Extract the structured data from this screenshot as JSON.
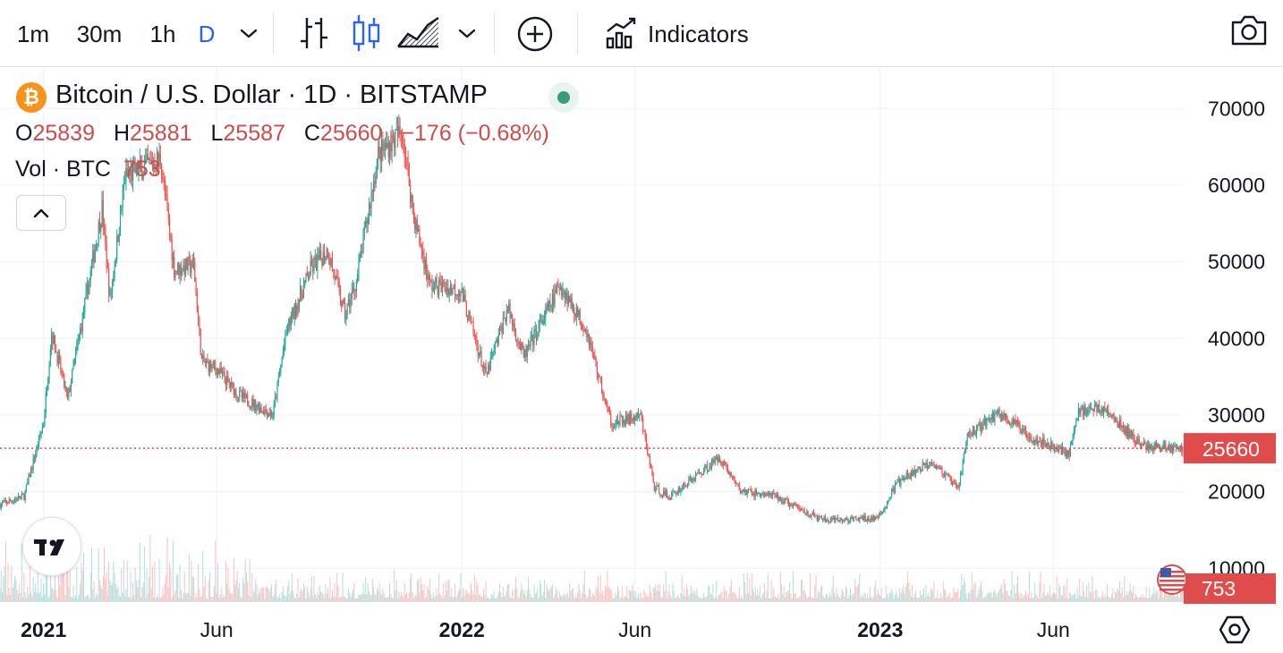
{
  "toolbar": {
    "intervals": [
      "1m",
      "30m",
      "1h",
      "D"
    ],
    "active_interval": "D",
    "indicators_label": "Indicators"
  },
  "legend": {
    "title": "Bitcoin / U.S. Dollar · 1D · BITSTAMP",
    "coin_symbol": "₿",
    "open_key": "O",
    "open": "25839",
    "high_key": "H",
    "high": "25881",
    "low_key": "L",
    "low": "25587",
    "close_key": "C",
    "close": "25660",
    "change": "−176 (−0.68%)",
    "volume_label": "Vol · BTC",
    "volume": "753"
  },
  "colors": {
    "up": "#26a69a",
    "down": "#ef5350",
    "last_price": "#e04b4b",
    "grid": "#f0f3fa",
    "interval_active": "#2962ff"
  },
  "chart_data": {
    "type": "candlestick",
    "title": "Bitcoin / U.S. Dollar · 1D · BITSTAMP",
    "y_ticks": [
      10000,
      20000,
      30000,
      40000,
      50000,
      60000,
      70000
    ],
    "y_tick_labels": [
      "10000",
      "20000",
      "30000",
      "40000",
      "50000",
      "60000",
      "70000"
    ],
    "ylim": [
      5600,
      75400
    ],
    "x_ticks": [
      "2021",
      "Jun",
      "2022",
      "Jun",
      "2023",
      "Jun"
    ],
    "x_tick_dates": [
      "2021-01-01",
      "2021-06-01",
      "2022-01-01",
      "2022-06-01",
      "2023-01-01",
      "2023-06-01"
    ],
    "x_range": [
      "2020-11-24",
      "2023-09-22"
    ],
    "last_price": 25660,
    "last_price_label": "25660",
    "last_volume_label": "753",
    "close_series": {
      "dates": [
        "2020-11-24",
        "2020-12-15",
        "2021-01-01",
        "2021-01-08",
        "2021-01-22",
        "2021-02-08",
        "2021-02-21",
        "2021-02-28",
        "2021-03-13",
        "2021-04-13",
        "2021-04-25",
        "2021-05-12",
        "2021-05-19",
        "2021-06-01",
        "2021-06-21",
        "2021-07-20",
        "2021-08-01",
        "2021-08-22",
        "2021-09-06",
        "2021-09-21",
        "2021-10-01",
        "2021-10-20",
        "2021-11-10",
        "2021-11-20",
        "2021-12-04",
        "2021-12-31",
        "2022-01-22",
        "2022-02-10",
        "2022-02-24",
        "2022-03-28",
        "2022-04-20",
        "2022-05-09",
        "2022-05-12",
        "2022-06-06",
        "2022-06-18",
        "2022-07-01",
        "2022-08-14",
        "2022-09-01",
        "2022-10-01",
        "2022-11-08",
        "2022-11-20",
        "2022-12-31",
        "2023-01-15",
        "2023-02-15",
        "2023-03-10",
        "2023-03-18",
        "2023-04-14",
        "2023-05-15",
        "2023-06-15",
        "2023-06-23",
        "2023-07-13",
        "2023-08-17",
        "2023-09-22"
      ],
      "values": [
        18300,
        19400,
        29000,
        40800,
        32000,
        46000,
        57000,
        45000,
        61000,
        63500,
        49000,
        49500,
        37000,
        36000,
        32500,
        30000,
        41000,
        49000,
        51500,
        43000,
        47500,
        64000,
        67000,
        56000,
        47000,
        46300,
        35000,
        44000,
        37500,
        47000,
        41000,
        30000,
        28900,
        29800,
        20500,
        19300,
        24500,
        20100,
        19400,
        16500,
        16200,
        16600,
        21000,
        24000,
        20300,
        27300,
        30300,
        27000,
        25000,
        30500,
        31000,
        26000,
        25660
      ]
    },
    "volume_scale_label": "Vol"
  }
}
